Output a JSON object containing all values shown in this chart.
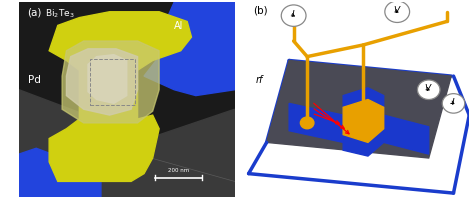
{
  "fig_width": 4.74,
  "fig_height": 1.99,
  "dpi": 100,
  "colors": {
    "yellow_pd": "#d8d820",
    "yellow_pd_dark": "#c0c010",
    "blue_al": "#2244dd",
    "dark_bg": "#1e1e1e",
    "gray_substrate": "#4a4a55",
    "white_text": "#ffffff",
    "orange": "#d48800",
    "orange_bright": "#e8a000",
    "blue_device": "#1a3ccc",
    "blue_loop": "#1a3ccc",
    "red_arrow": "#dd0000",
    "light_gray_bi2te3": "#c0c0a8",
    "dashed_box": "#777777"
  },
  "panel_a": {
    "label": "(a)",
    "bi2te3_label": "Bi$_2$Te$_3$",
    "al_label": "Al",
    "pd_label": "Pd",
    "scalebar_label": "200 nm"
  },
  "panel_b": {
    "label": "(b)",
    "rf_label": "rf",
    "i1_label": "I",
    "v1_label": "V",
    "v2_label": "V",
    "i2_label": "I"
  }
}
